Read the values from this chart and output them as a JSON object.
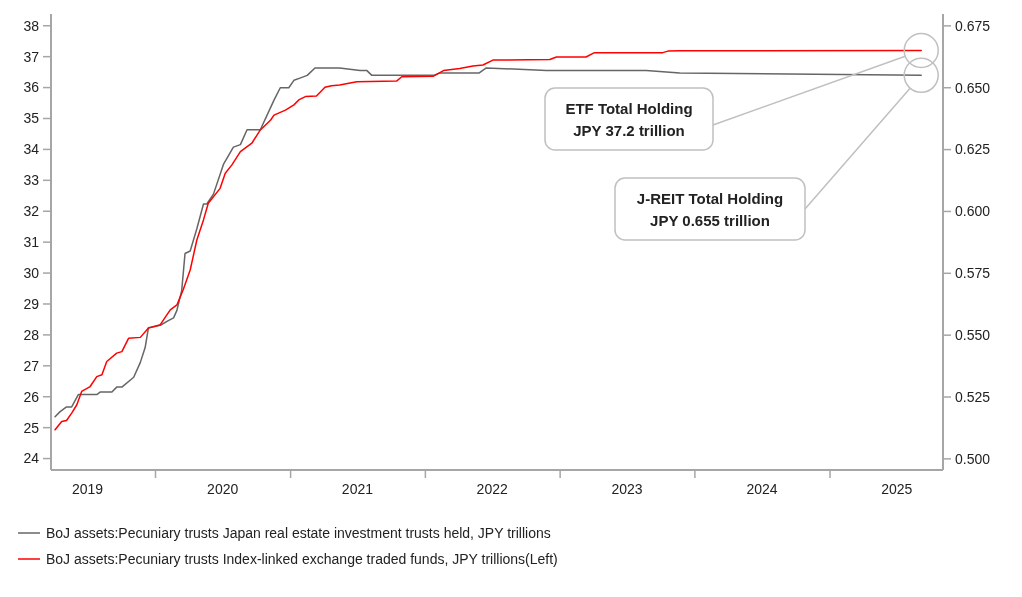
{
  "chart_data": {
    "type": "line",
    "xlim": [
      "2019-03-24",
      "2025-11-03"
    ],
    "xticks": [
      {
        "value": "2019-07-01",
        "label": "2019"
      },
      {
        "value": "2020-01-01",
        "label": null
      },
      {
        "value": "2020-07-01",
        "label": "2020"
      },
      {
        "value": "2021-01-01",
        "label": null
      },
      {
        "value": "2021-07-01",
        "label": "2021"
      },
      {
        "value": "2022-01-01",
        "label": null
      },
      {
        "value": "2022-07-01",
        "label": "2022"
      },
      {
        "value": "2023-01-01",
        "label": null
      },
      {
        "value": "2023-07-01",
        "label": "2023"
      },
      {
        "value": "2024-01-01",
        "label": null
      },
      {
        "value": "2024-07-01",
        "label": "2024"
      },
      {
        "value": "2025-01-01",
        "label": null
      },
      {
        "value": "2025-07-01",
        "label": "2025"
      }
    ],
    "ylim": [
      23.63,
      38.38
    ],
    "yticks": [
      24,
      25,
      26,
      27,
      28,
      29,
      30,
      31,
      32,
      33,
      34,
      35,
      36,
      37,
      38
    ],
    "y2lim": [
      0.4955,
      0.6798
    ],
    "y2ticks": [
      {
        "value": 0.5,
        "label": "0.500"
      },
      0.525,
      {
        "value": 0.55,
        "label": "0.550"
      },
      0.575,
      {
        "value": 0.6,
        "label": "0.600"
      },
      0.625,
      {
        "value": 0.65,
        "label": "0.650"
      },
      0.675
    ],
    "grid": false,
    "legend": "bottom",
    "series": [
      {
        "name": "BoJ assets:Pecuniary trusts Japan real estate investment trusts held, JPY trillions",
        "color": "#666666",
        "axis": "y2",
        "x": [
          "2019-04-04",
          "2019-04-17",
          "2019-05-05",
          "2019-05-19",
          "2019-06-06",
          "2019-07-26",
          "2019-08-04",
          "2019-09-05",
          "2019-09-18",
          "2019-10-02",
          "2019-11-03",
          "2019-11-21",
          "2019-12-04",
          "2019-12-13",
          "2020-01-14",
          "2020-02-06",
          "2020-02-19",
          "2020-02-28",
          "2020-03-12",
          "2020-03-21",
          "2020-04-04",
          "2020-04-22",
          "2020-05-10",
          "2020-05-19",
          "2020-06-06",
          "2020-07-03",
          "2020-07-30",
          "2020-08-18",
          "2020-09-05",
          "2020-10-11",
          "2020-11-17",
          "2020-12-04",
          "2020-12-27",
          "2021-01-10",
          "2021-01-28",
          "2021-02-15",
          "2021-03-08",
          "2021-05-14",
          "2021-07-08",
          "2021-07-26",
          "2021-08-09",
          "2022-01-23",
          "2022-02-10",
          "2022-05-27",
          "2022-06-15",
          "2022-11-25",
          "2023-08-22",
          "2023-11-21",
          "2025-09-05"
        ],
        "values": [
          0.517,
          0.519,
          0.521,
          0.521,
          0.526,
          0.526,
          0.527,
          0.527,
          0.529,
          0.529,
          0.533,
          0.539,
          0.545,
          0.553,
          0.554,
          0.556,
          0.557,
          0.56,
          0.568,
          0.583,
          0.584,
          0.593,
          0.603,
          0.603,
          0.607,
          0.619,
          0.626,
          0.627,
          0.633,
          0.633,
          0.645,
          0.65,
          0.65,
          0.653,
          0.654,
          0.655,
          0.658,
          0.658,
          0.657,
          0.657,
          0.655,
          0.655,
          0.656,
          0.656,
          0.658,
          0.657,
          0.657,
          0.656,
          0.655
        ]
      },
      {
        "name": "BoJ assets:Pecuniary trusts Index-linked exchange traded funds, JPY trillions(Left)",
        "color": "#ff0000",
        "x": [
          "2019-04-04",
          "2019-04-22",
          "2019-05-05",
          "2019-05-19",
          "2019-06-02",
          "2019-06-15",
          "2019-07-08",
          "2019-07-26",
          "2019-08-09",
          "2019-08-22",
          "2019-09-18",
          "2019-10-02",
          "2019-10-20",
          "2019-11-21",
          "2019-12-13",
          "2020-01-14",
          "2020-02-10",
          "2020-02-28",
          "2020-03-16",
          "2020-04-04",
          "2020-04-22",
          "2020-05-10",
          "2020-05-23",
          "2020-06-24",
          "2020-07-08",
          "2020-07-26",
          "2020-08-18",
          "2020-09-18",
          "2020-10-11",
          "2020-11-08",
          "2020-11-17",
          "2020-12-18",
          "2021-01-10",
          "2021-01-23",
          "2021-02-10",
          "2021-03-12",
          "2021-04-04",
          "2021-04-22",
          "2021-05-14",
          "2021-06-29",
          "2021-10-15",
          "2021-10-29",
          "2022-01-23",
          "2022-02-19",
          "2022-04-04",
          "2022-05-10",
          "2022-06-06",
          "2022-07-03",
          "2022-12-04",
          "2022-12-22",
          "2023-03-12",
          "2023-04-04",
          "2023-10-06",
          "2023-10-20",
          "2023-11-21",
          "2025-09-05"
        ],
        "values": [
          24.93,
          25.2,
          25.23,
          25.47,
          25.74,
          26.17,
          26.33,
          26.65,
          26.71,
          27.14,
          27.41,
          27.46,
          27.89,
          27.92,
          28.22,
          28.33,
          28.81,
          28.97,
          29.46,
          30.1,
          31.07,
          31.72,
          32.26,
          32.74,
          33.23,
          33.5,
          33.93,
          34.2,
          34.63,
          34.95,
          35.11,
          35.27,
          35.44,
          35.6,
          35.71,
          35.73,
          36.01,
          36.06,
          36.08,
          36.19,
          36.21,
          36.35,
          36.37,
          36.55,
          36.62,
          36.7,
          36.73,
          36.89,
          36.91,
          36.99,
          36.99,
          37.13,
          37.13,
          37.18,
          37.19,
          37.2
        ]
      }
    ],
    "annotations": [
      "ETF Total Holding\nJPY 37.2 trillion",
      "J-REIT Total Holding\nJPY 0.655 trillion"
    ]
  }
}
